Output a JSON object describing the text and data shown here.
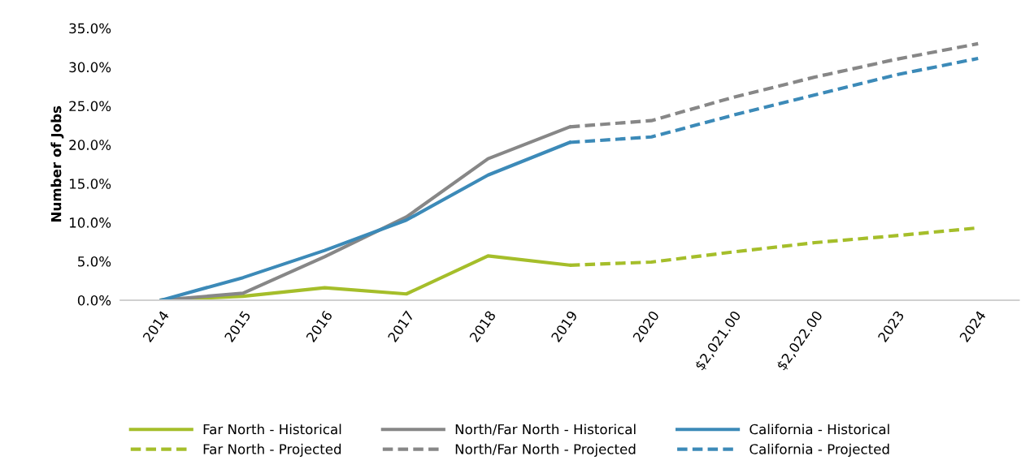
{
  "chart_data": {
    "type": "line",
    "ylabel": "Number of Jobs",
    "categories": [
      "2014",
      "2015",
      "2016",
      "2017",
      "2018",
      "2019",
      "2020",
      "$2,021.00",
      "$2,022.00",
      "2023",
      "2024"
    ],
    "series": [
      {
        "name": "Far North - Historical",
        "color": "#a5be2a",
        "line_style": "solid",
        "values": [
          0,
          0.5,
          1.6,
          0.8,
          5.7,
          4.5,
          null,
          null,
          null,
          null,
          null
        ]
      },
      {
        "name": "Far North - Projected",
        "color": "#a5be2a",
        "line_style": "dashed",
        "values": [
          null,
          null,
          null,
          null,
          null,
          4.5,
          4.9,
          6.2,
          7.4,
          8.3,
          9.3
        ]
      },
      {
        "name": "North/Far North - Historical",
        "color": "#878787",
        "line_style": "solid",
        "values": [
          0,
          0.9,
          5.6,
          10.7,
          18.2,
          22.3,
          null,
          null,
          null,
          null,
          null
        ]
      },
      {
        "name": "North/Far North - Projected",
        "color": "#878787",
        "line_style": "dashed",
        "values": [
          null,
          null,
          null,
          null,
          null,
          22.3,
          23.1,
          26.1,
          28.7,
          31.0,
          33.0
        ]
      },
      {
        "name": "California - Historical",
        "color": "#3c8ab8",
        "line_style": "solid",
        "values": [
          0,
          2.9,
          6.4,
          10.3,
          16.1,
          20.3,
          null,
          null,
          null,
          null,
          null
        ]
      },
      {
        "name": "California - Projected",
        "color": "#3c8ab8",
        "line_style": "dashed",
        "values": [
          null,
          null,
          null,
          null,
          null,
          20.3,
          21.0,
          23.8,
          26.4,
          29.0,
          31.1
        ]
      }
    ],
    "ylim": [
      0,
      35
    ],
    "yticks": [
      {
        "value": 0,
        "label": "0.0%"
      },
      {
        "value": 5,
        "label": "5.0%"
      },
      {
        "value": 10,
        "label": "10.0%"
      },
      {
        "value": 15,
        "label": "15.0%"
      },
      {
        "value": 20,
        "label": "20.0%"
      },
      {
        "value": 25,
        "label": "25.0%"
      },
      {
        "value": 30,
        "label": "30.0%"
      },
      {
        "value": 35,
        "label": "35.0%"
      }
    ],
    "grid": false,
    "legend": "bottom",
    "marker": "none"
  }
}
